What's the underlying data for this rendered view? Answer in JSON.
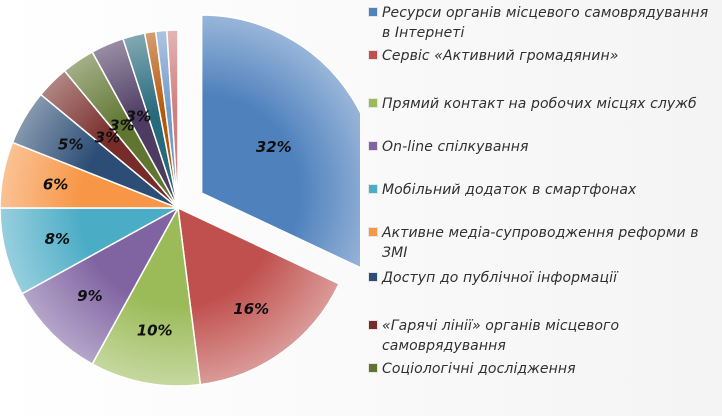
{
  "chart_data": {
    "type": "pie",
    "categories": [
      "Ресурси органів місцевого самоврядування в Інтернеті",
      "Сервіс «Активний громадянин»",
      "Прямий контакт на робочих місцях служб",
      "On-line спілкування",
      "Мобільний додаток в смартфонах",
      "Активне медіа-супроводження реформи в ЗМІ",
      "Доступ до публічної інформації",
      "«Гарячі лінії» органів місцевого самоврядування",
      "Соціологічні дослідження",
      "",
      "",
      "",
      "",
      ""
    ],
    "values": [
      32,
      16,
      10,
      9,
      8,
      6,
      5,
      3,
      3,
      3,
      2,
      1,
      1,
      1
    ],
    "data_labels": [
      "32%",
      "16%",
      "10%",
      "9%",
      "8%",
      "6%",
      "5%",
      "3%",
      "3%",
      "3%",
      "",
      "",
      "",
      ""
    ],
    "colors": [
      "#4f81bd",
      "#c0504d",
      "#9bbb59",
      "#8064a2",
      "#4bacc6",
      "#f79646",
      "#2c4d75",
      "#772c2a",
      "#5f7530",
      "#4d3b62",
      "#276a7c",
      "#b65708",
      "#729aca",
      "#ce7f7e"
    ],
    "legend_position": "right",
    "exploded_slice": 0
  },
  "legend": [
    {
      "label": "Ресурси органів місцевого самоврядування в Інтернеті",
      "color": "#4f81bd"
    },
    {
      "label": "Сервіс «Активний громадянин»",
      "color": "#c0504d"
    },
    {
      "label": "Прямий контакт на робочих місцях служб",
      "color": "#9bbb59"
    },
    {
      "label": "On-line спілкування",
      "color": "#8064a2"
    },
    {
      "label": "Мобільний додаток в смартфонах",
      "color": "#4bacc6"
    },
    {
      "label": "Активне медіа-супроводження реформи в ЗМІ",
      "color": "#f79646"
    },
    {
      "label": "Доступ до публічної інформації",
      "color": "#2c4d75"
    },
    {
      "label": "«Гарячі лінії» органів місцевого самоврядування",
      "color": "#772c2a"
    },
    {
      "label": "Соціологічні дослідження",
      "color": "#5f7530"
    }
  ]
}
